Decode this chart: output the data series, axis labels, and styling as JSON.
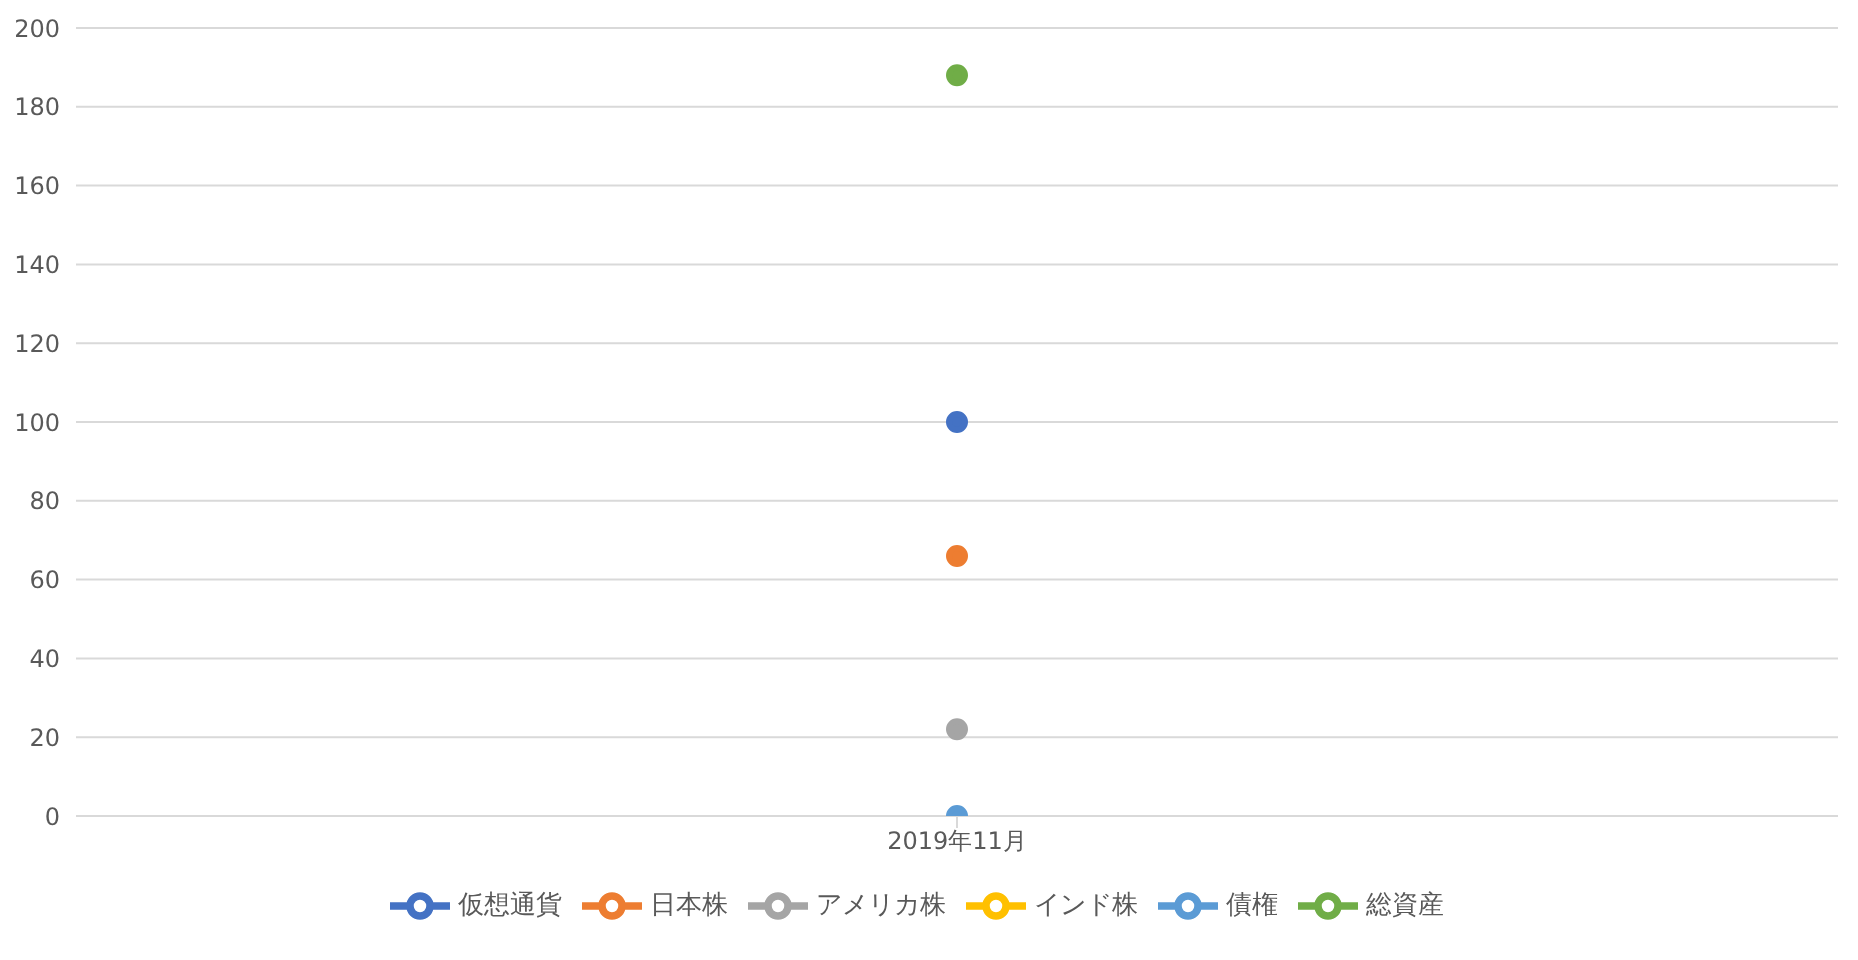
{
  "chart_data": {
    "type": "line",
    "categories": [
      "2019年11月"
    ],
    "series": [
      {
        "name": "仮想通貨",
        "color": "#4472c4",
        "values": [
          100
        ]
      },
      {
        "name": "日本株",
        "color": "#ed7d31",
        "values": [
          66
        ]
      },
      {
        "name": "アメリカ株",
        "color": "#a5a5a5",
        "values": [
          22
        ]
      },
      {
        "name": "インド株",
        "color": "#ffc000",
        "values": [
          null
        ]
      },
      {
        "name": "債権",
        "color": "#5b9bd5",
        "values": [
          0
        ]
      },
      {
        "name": "総資産",
        "color": "#70ad47",
        "values": [
          188
        ]
      }
    ],
    "ylim": [
      0,
      200
    ],
    "yticks": [
      0,
      20,
      40,
      60,
      80,
      100,
      120,
      140,
      160,
      180,
      200
    ],
    "grid": "y",
    "legend": "bottom",
    "marker": "circle",
    "line_style": "solid"
  }
}
